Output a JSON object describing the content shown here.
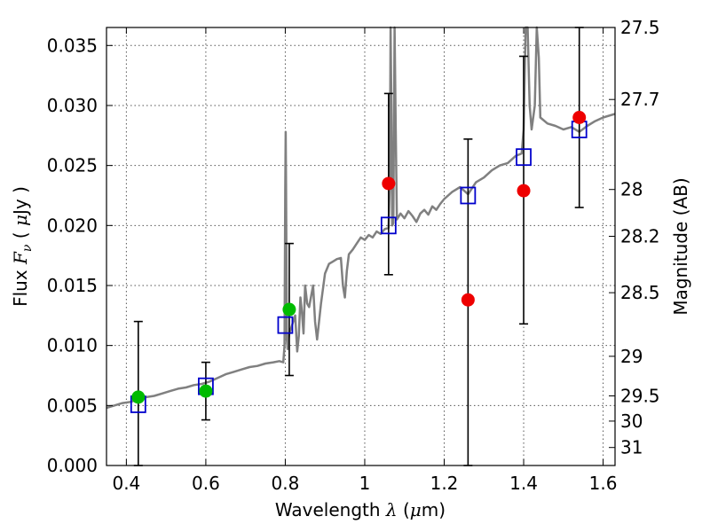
{
  "chart_data": {
    "type": "scatter",
    "xlabel": "Wavelength",
    "xlabel_symbol": "λ",
    "xlabel_unit_prefix": "μ",
    "xlabel_unit": "m",
    "ylabel": "Flux",
    "ylabel_symbol_main": "F",
    "ylabel_symbol_sub": "ν",
    "ylabel_unit_prefix": "μ",
    "ylabel_unit": "Jy",
    "y2label": "Magnitude (AB)",
    "xlim": [
      0.35,
      1.63
    ],
    "ylim": [
      0.0,
      0.0365
    ],
    "grid": true,
    "x_ticks": [
      {
        "value": 0.4,
        "label": "0.4"
      },
      {
        "value": 0.6,
        "label": "0.6"
      },
      {
        "value": 0.8,
        "label": "0.8"
      },
      {
        "value": 1.0,
        "label": "1"
      },
      {
        "value": 1.2,
        "label": "1.2"
      },
      {
        "value": 1.4,
        "label": "1.4"
      },
      {
        "value": 1.6,
        "label": "1.6"
      }
    ],
    "y_ticks": [
      {
        "value": 0.0,
        "label": "0.000"
      },
      {
        "value": 0.005,
        "label": "0.005"
      },
      {
        "value": 0.01,
        "label": "0.010"
      },
      {
        "value": 0.015,
        "label": "0.015"
      },
      {
        "value": 0.02,
        "label": "0.020"
      },
      {
        "value": 0.025,
        "label": "0.025"
      },
      {
        "value": 0.03,
        "label": "0.030"
      },
      {
        "value": 0.035,
        "label": "0.035"
      }
    ],
    "y2_ticks": [
      {
        "flux": 0.0365,
        "label": "27.5"
      },
      {
        "flux": 0.0305,
        "label": "27.7"
      },
      {
        "flux": 0.023,
        "label": "28"
      },
      {
        "flux": 0.0191,
        "label": "28.2"
      },
      {
        "flux": 0.0144,
        "label": "28.5"
      },
      {
        "flux": 0.0091,
        "label": "29"
      },
      {
        "flux": 0.0058,
        "label": "29.5"
      },
      {
        "flux": 0.0037,
        "label": "30"
      },
      {
        "flux": 0.0015,
        "label": "31"
      }
    ],
    "spectrum_color": "#808080",
    "spectrum": [
      [
        0.35,
        0.0048
      ],
      [
        0.37,
        0.005
      ],
      [
        0.39,
        0.0052
      ],
      [
        0.41,
        0.0053
      ],
      [
        0.43,
        0.0055
      ],
      [
        0.45,
        0.0057
      ],
      [
        0.47,
        0.0058
      ],
      [
        0.49,
        0.006
      ],
      [
        0.51,
        0.0062
      ],
      [
        0.53,
        0.0064
      ],
      [
        0.55,
        0.0065
      ],
      [
        0.57,
        0.0067
      ],
      [
        0.59,
        0.0068
      ],
      [
        0.61,
        0.007
      ],
      [
        0.63,
        0.0073
      ],
      [
        0.65,
        0.0076
      ],
      [
        0.67,
        0.0078
      ],
      [
        0.69,
        0.008
      ],
      [
        0.71,
        0.0082
      ],
      [
        0.73,
        0.0083
      ],
      [
        0.75,
        0.0085
      ],
      [
        0.77,
        0.0086
      ],
      [
        0.785,
        0.0087
      ],
      [
        0.795,
        0.0086
      ],
      [
        0.798,
        0.01
      ],
      [
        0.8,
        0.023
      ],
      [
        0.801,
        0.0278
      ],
      [
        0.802,
        0.0235
      ],
      [
        0.804,
        0.0105
      ],
      [
        0.806,
        0.0097
      ],
      [
        0.81,
        0.011
      ],
      [
        0.815,
        0.0115
      ],
      [
        0.82,
        0.012
      ],
      [
        0.825,
        0.0125
      ],
      [
        0.83,
        0.0095
      ],
      [
        0.834,
        0.0108
      ],
      [
        0.838,
        0.014
      ],
      [
        0.842,
        0.0128
      ],
      [
        0.846,
        0.011
      ],
      [
        0.85,
        0.015
      ],
      [
        0.855,
        0.0135
      ],
      [
        0.86,
        0.0132
      ],
      [
        0.87,
        0.015
      ],
      [
        0.875,
        0.012
      ],
      [
        0.88,
        0.0105
      ],
      [
        0.89,
        0.0135
      ],
      [
        0.9,
        0.016
      ],
      [
        0.91,
        0.0168
      ],
      [
        0.92,
        0.017
      ],
      [
        0.93,
        0.0172
      ],
      [
        0.94,
        0.0173
      ],
      [
        0.945,
        0.015
      ],
      [
        0.95,
        0.014
      ],
      [
        0.955,
        0.0162
      ],
      [
        0.96,
        0.0176
      ],
      [
        0.97,
        0.018
      ],
      [
        0.98,
        0.0185
      ],
      [
        0.99,
        0.019
      ],
      [
        1.0,
        0.0188
      ],
      [
        1.01,
        0.0192
      ],
      [
        1.02,
        0.019
      ],
      [
        1.03,
        0.0195
      ],
      [
        1.04,
        0.0193
      ],
      [
        1.05,
        0.0197
      ],
      [
        1.06,
        0.0198
      ],
      [
        1.063,
        0.0235
      ],
      [
        1.065,
        0.0365
      ],
      [
        1.067,
        0.03
      ],
      [
        1.069,
        0.02
      ],
      [
        1.072,
        0.0202
      ],
      [
        1.075,
        0.0365
      ],
      [
        1.078,
        0.028
      ],
      [
        1.081,
        0.0205
      ],
      [
        1.09,
        0.021
      ],
      [
        1.1,
        0.0206
      ],
      [
        1.11,
        0.0212
      ],
      [
        1.12,
        0.0208
      ],
      [
        1.13,
        0.0203
      ],
      [
        1.14,
        0.021
      ],
      [
        1.15,
        0.0213
      ],
      [
        1.16,
        0.0209
      ],
      [
        1.17,
        0.0216
      ],
      [
        1.18,
        0.0213
      ],
      [
        1.19,
        0.0218
      ],
      [
        1.2,
        0.0222
      ],
      [
        1.22,
        0.0228
      ],
      [
        1.24,
        0.0232
      ],
      [
        1.26,
        0.0226
      ],
      [
        1.28,
        0.0236
      ],
      [
        1.3,
        0.024
      ],
      [
        1.32,
        0.0246
      ],
      [
        1.34,
        0.025
      ],
      [
        1.36,
        0.0252
      ],
      [
        1.38,
        0.0258
      ],
      [
        1.395,
        0.026
      ],
      [
        1.4,
        0.028
      ],
      [
        1.405,
        0.0365
      ],
      [
        1.41,
        0.0365
      ],
      [
        1.415,
        0.03
      ],
      [
        1.42,
        0.028
      ],
      [
        1.428,
        0.03
      ],
      [
        1.433,
        0.0365
      ],
      [
        1.438,
        0.034
      ],
      [
        1.442,
        0.029
      ],
      [
        1.46,
        0.0285
      ],
      [
        1.48,
        0.0283
      ],
      [
        1.5,
        0.028
      ],
      [
        1.52,
        0.0282
      ],
      [
        1.54,
        0.0278
      ],
      [
        1.56,
        0.0283
      ],
      [
        1.58,
        0.0287
      ],
      [
        1.6,
        0.029
      ],
      [
        1.63,
        0.0293
      ]
    ],
    "model_points": {
      "color": "#0000cc",
      "x": [
        0.43,
        0.6,
        0.8,
        1.06,
        1.26,
        1.4,
        1.54
      ],
      "y": [
        0.0051,
        0.0066,
        0.0117,
        0.02,
        0.0225,
        0.0257,
        0.028
      ]
    },
    "observed_points": [
      {
        "x": 0.43,
        "y": 0.0057,
        "yerr_low": 0.0,
        "yerr_high": 0.012,
        "color": "#00bb00"
      },
      {
        "x": 0.6,
        "y": 0.0062,
        "yerr_low": 0.0038,
        "yerr_high": 0.0086,
        "color": "#00bb00"
      },
      {
        "x": 0.81,
        "y": 0.013,
        "yerr_low": 0.0075,
        "yerr_high": 0.0185,
        "color": "#00bb00"
      },
      {
        "x": 1.06,
        "y": 0.0235,
        "yerr_low": 0.0159,
        "yerr_high": 0.031,
        "color": "#ee0000"
      },
      {
        "x": 1.26,
        "y": 0.0138,
        "yerr_low": 0.0,
        "yerr_high": 0.0272,
        "color": "#ee0000"
      },
      {
        "x": 1.4,
        "y": 0.0229,
        "yerr_low": 0.0118,
        "yerr_high": 0.0341,
        "color": "#ee0000"
      },
      {
        "x": 1.54,
        "y": 0.029,
        "yerr_low": 0.0215,
        "yerr_high": 0.0365,
        "color": "#ee0000"
      }
    ]
  }
}
